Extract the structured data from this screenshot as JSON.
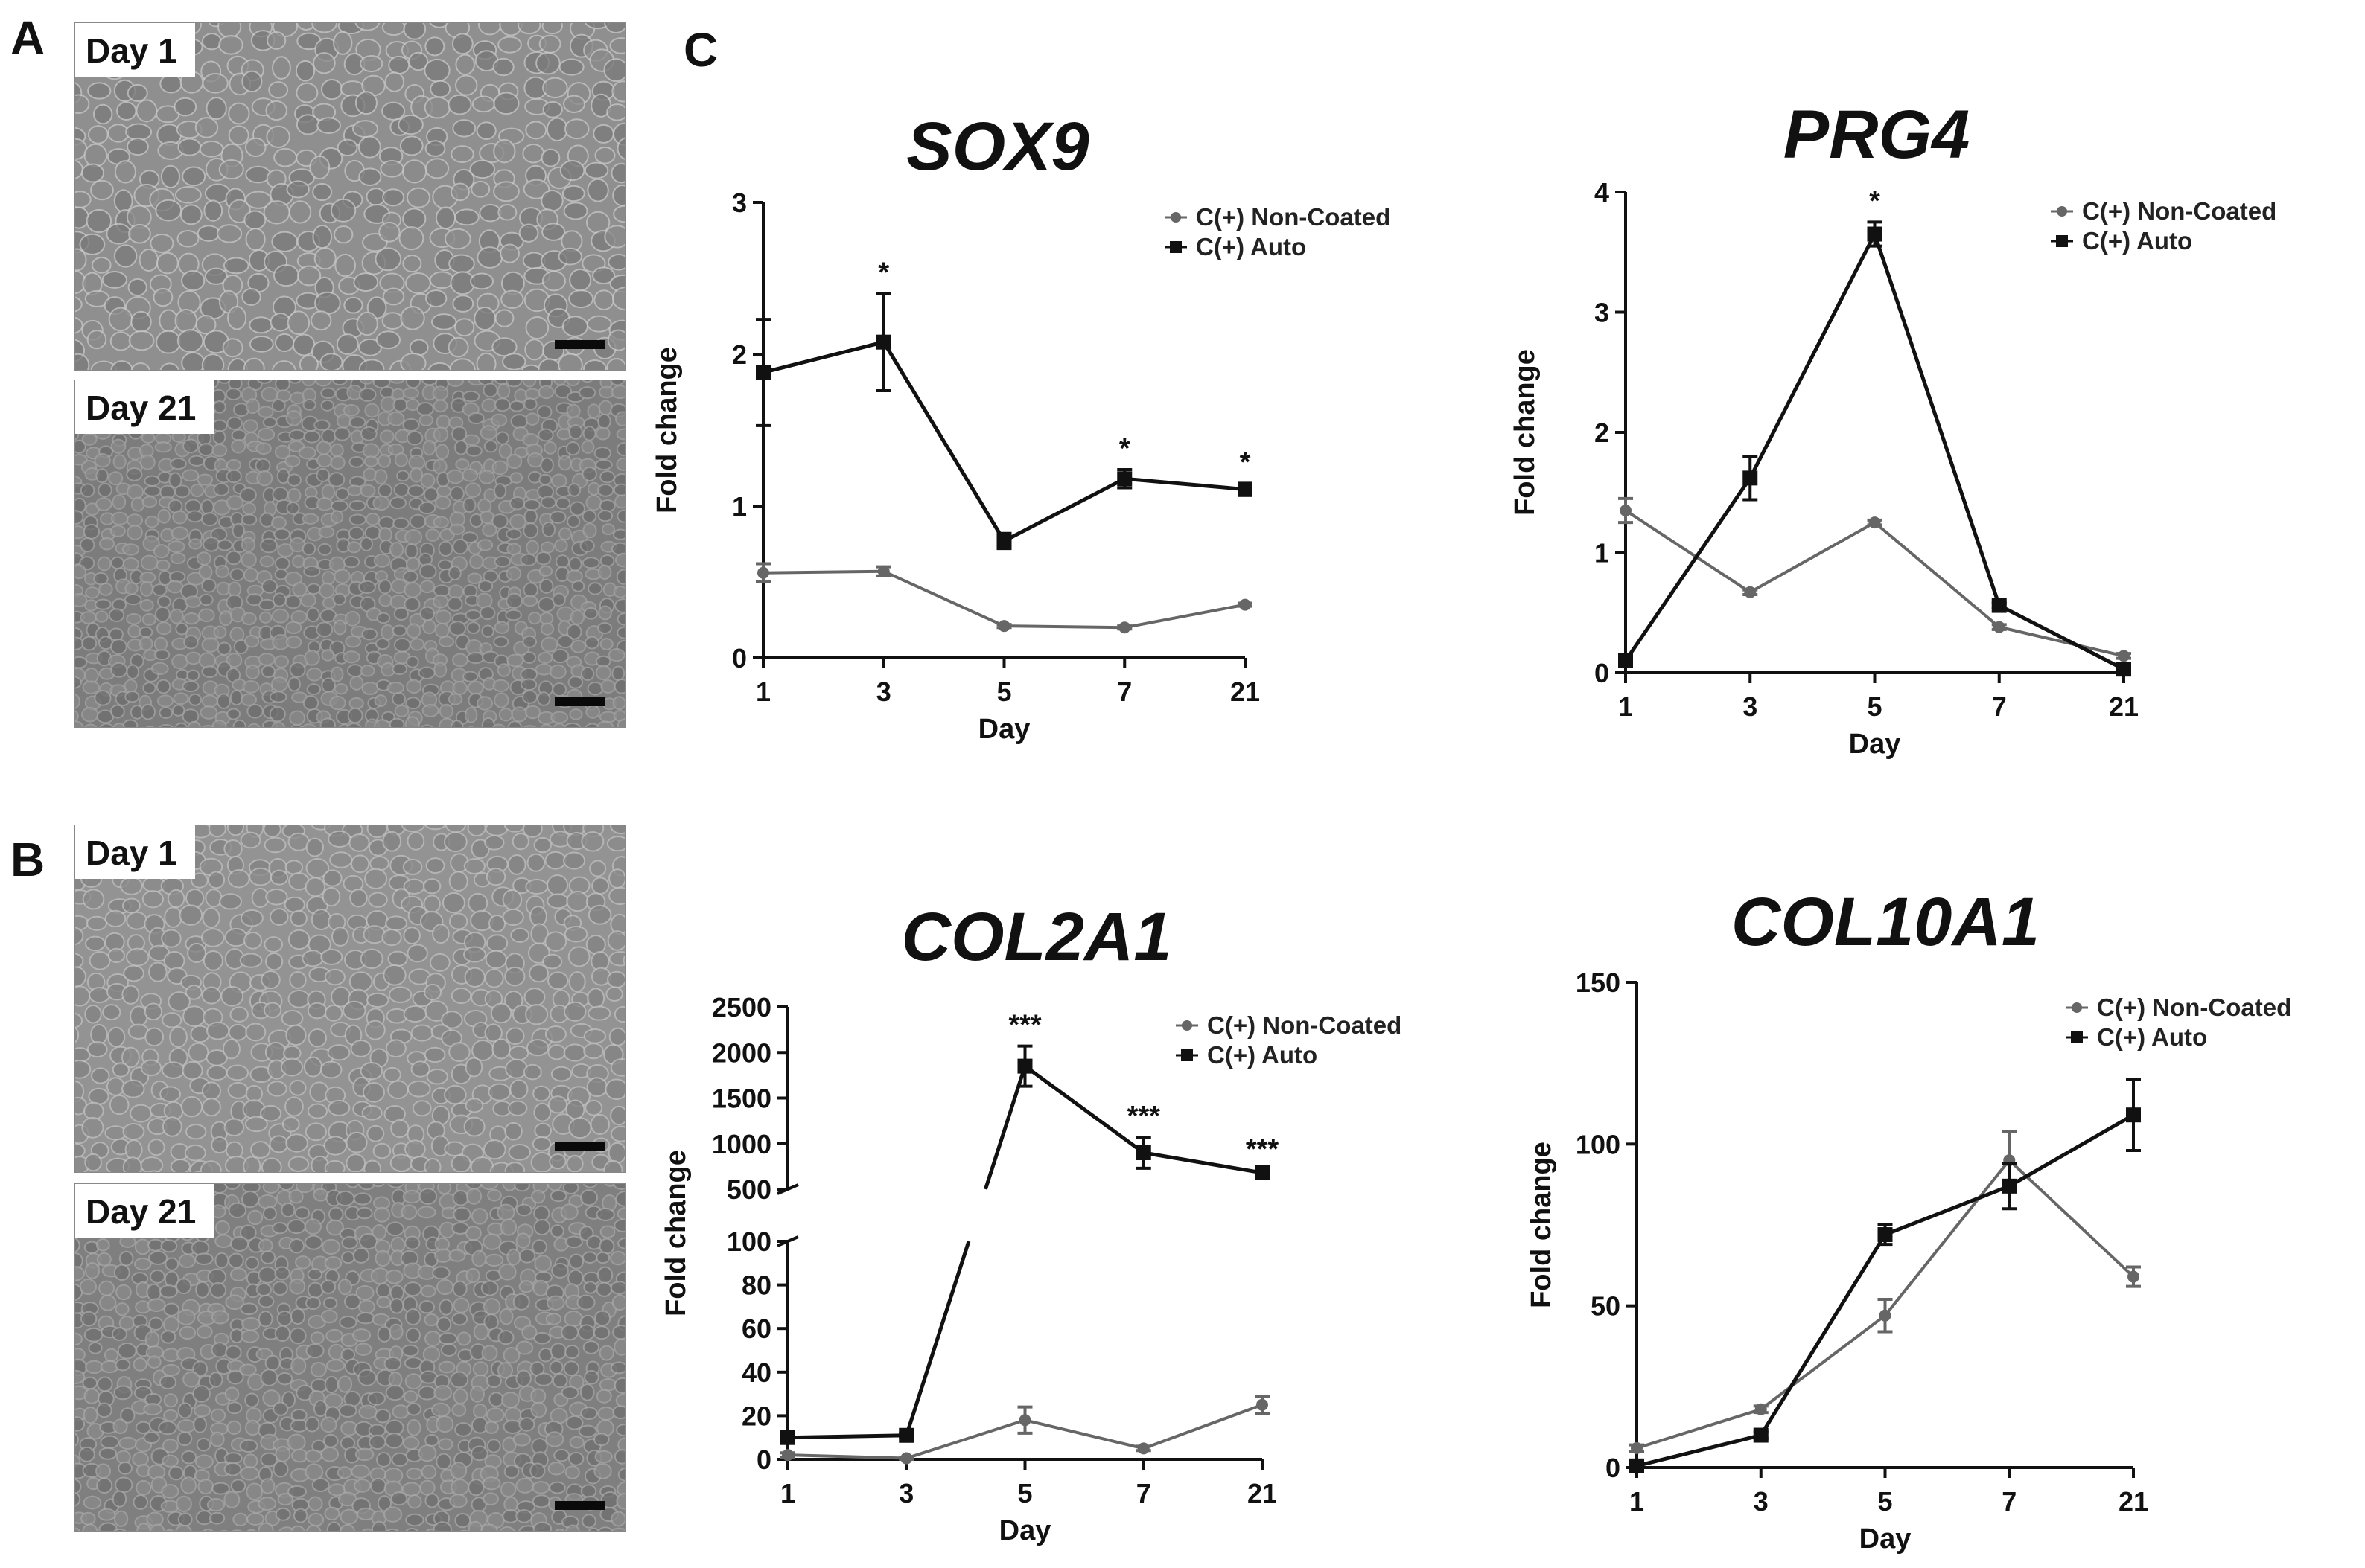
{
  "colors": {
    "series_noncoated": "#666666",
    "series_auto": "#111111",
    "axis": "#111111"
  },
  "panel_a": {
    "letter": "A",
    "images": [
      {
        "label": "Day 1"
      },
      {
        "label": "Day 21"
      }
    ]
  },
  "panel_b": {
    "letter": "B",
    "images": [
      {
        "label": "Day 1"
      },
      {
        "label": "Day 21"
      }
    ]
  },
  "panel_c": {
    "letter": "C"
  },
  "chart_data": [
    {
      "type": "line",
      "title": "SOX9",
      "xlabel": "Day",
      "ylabel": "Fold change",
      "categories": [
        "1",
        "3",
        "5",
        "7",
        "21"
      ],
      "ylim": [
        0,
        3
      ],
      "yticks": [
        "0",
        "1",
        "2",
        "3"
      ],
      "legend_position": "top-right",
      "grid": false,
      "series": [
        {
          "name": "C(+) Non-Coated",
          "marker": "circle",
          "values": [
            0.56,
            0.57,
            0.21,
            0.2,
            0.35
          ],
          "errors": [
            0.06,
            0.03,
            0.01,
            0.01,
            0.01
          ]
        },
        {
          "name": "C(+) Auto",
          "marker": "square",
          "values": [
            1.88,
            2.08,
            0.77,
            1.18,
            1.11
          ],
          "errors": [
            0.35,
            0.32,
            0.05,
            0.06,
            0.04
          ]
        }
      ],
      "annotations": [
        {
          "x": "3",
          "text": "*"
        },
        {
          "x": "7",
          "text": "*"
        },
        {
          "x": "21",
          "text": "*"
        }
      ]
    },
    {
      "type": "line",
      "title": "PRG4",
      "xlabel": "Day",
      "ylabel": "Fold change",
      "categories": [
        "1",
        "3",
        "5",
        "7",
        "21"
      ],
      "ylim": [
        0,
        4
      ],
      "yticks": [
        "0",
        "1",
        "2",
        "3",
        "4"
      ],
      "legend_position": "top-right",
      "grid": false,
      "series": [
        {
          "name": "C(+) Non-Coated",
          "marker": "circle",
          "values": [
            1.35,
            0.67,
            1.25,
            0.38,
            0.14
          ],
          "errors": [
            0.1,
            0.02,
            0.02,
            0.02,
            0.02
          ]
        },
        {
          "name": "C(+) Auto",
          "marker": "square",
          "values": [
            0.1,
            1.62,
            3.65,
            0.56,
            0.03
          ],
          "errors": [
            0.02,
            0.18,
            0.1,
            0.02,
            0.01
          ]
        }
      ],
      "annotations": [
        {
          "x": "5",
          "text": "*"
        }
      ]
    },
    {
      "type": "line",
      "title": "COL2A1",
      "xlabel": "Day",
      "ylabel": "Fold change",
      "categories": [
        "1",
        "3",
        "5",
        "7",
        "21"
      ],
      "ylim": [
        0,
        2500
      ],
      "y_axis_break": {
        "lower_range": [
          0,
          100
        ],
        "upper_range": [
          500,
          2500
        ]
      },
      "yticks_lower": [
        "0",
        "20",
        "40",
        "60",
        "80",
        "100"
      ],
      "yticks_upper": [
        "500",
        "1000",
        "1500",
        "2000",
        "2500"
      ],
      "legend_position": "top-right",
      "grid": false,
      "series": [
        {
          "name": "C(+) Non-Coated",
          "marker": "circle",
          "values": [
            2,
            0.5,
            18,
            5,
            25
          ],
          "errors": [
            1,
            0.5,
            6,
            1,
            4
          ]
        },
        {
          "name": "C(+) Auto",
          "marker": "square",
          "values": [
            10,
            11,
            1850,
            900,
            680
          ],
          "errors": [
            1,
            1,
            220,
            170,
            30
          ]
        }
      ],
      "annotations": [
        {
          "x": "5",
          "text": "***"
        },
        {
          "x": "7",
          "text": "***"
        },
        {
          "x": "21",
          "text": "***"
        }
      ]
    },
    {
      "type": "line",
      "title": "COL10A1",
      "xlabel": "Day",
      "ylabel": "Fold change",
      "categories": [
        "1",
        "3",
        "5",
        "7",
        "21"
      ],
      "ylim": [
        0,
        150
      ],
      "yticks": [
        "0",
        "50",
        "100",
        "150"
      ],
      "legend_position": "top-right",
      "grid": false,
      "series": [
        {
          "name": "C(+) Non-Coated",
          "marker": "circle",
          "values": [
            6,
            18,
            47,
            95,
            59
          ],
          "errors": [
            1,
            1,
            5,
            9,
            3
          ]
        },
        {
          "name": "C(+) Auto",
          "marker": "square",
          "values": [
            0.5,
            10,
            72,
            87,
            109
          ],
          "errors": [
            0.5,
            1,
            3,
            7,
            11
          ]
        }
      ],
      "annotations": []
    }
  ]
}
